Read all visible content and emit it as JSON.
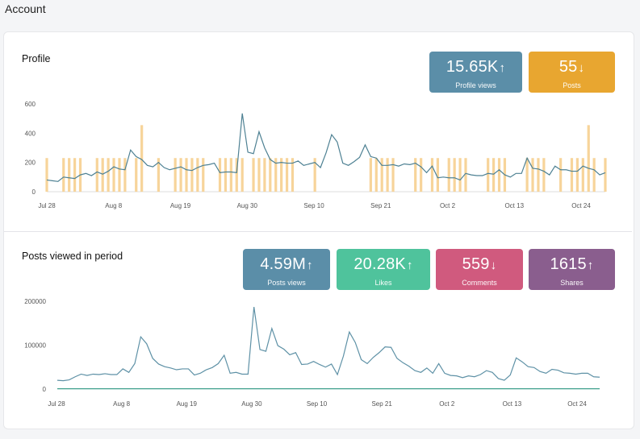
{
  "page": {
    "title": "Account"
  },
  "profile": {
    "title": "Profile",
    "stats": [
      {
        "value": "15.65K",
        "direction": "up",
        "label": "Profile views",
        "color": "#5b8ea8"
      },
      {
        "value": "55",
        "direction": "down",
        "label": "Posts",
        "color": "#e8a630"
      }
    ]
  },
  "posts": {
    "title": "Posts viewed in period",
    "stats": [
      {
        "value": "4.59M",
        "direction": "up",
        "label": "Posts views",
        "color": "#5b8ea8"
      },
      {
        "value": "20.28K",
        "direction": "up",
        "label": "Likes",
        "color": "#4fc39c"
      },
      {
        "value": "559",
        "direction": "down",
        "label": "Comments",
        "color": "#d05a7e"
      },
      {
        "value": "1615",
        "direction": "up",
        "label": "Shares",
        "color": "#8a5e8e"
      }
    ]
  },
  "chart_data": [
    {
      "type": "bar+line",
      "title": "",
      "x_tick_labels": [
        "Jul 28",
        "Aug 8",
        "Aug 19",
        "Aug 30",
        "Sep 10",
        "Sep 21",
        "Oct 2",
        "Oct 13",
        "Oct 24"
      ],
      "y_tick_labels": [
        "0",
        "200",
        "400",
        "600"
      ],
      "ylim": [
        0,
        600
      ],
      "bar_color": "#f7d49a",
      "line_color": "#4e8193",
      "series": [
        {
          "values": [
            230,
            0,
            0,
            230,
            230,
            230,
            230,
            0,
            0,
            230,
            230,
            230,
            230,
            230,
            230,
            0,
            230,
            455,
            0,
            0,
            230,
            0,
            0,
            230,
            230,
            230,
            230,
            230,
            230,
            0,
            0,
            230,
            230,
            230,
            230,
            230,
            0,
            230,
            230,
            230,
            230,
            230,
            230,
            230,
            230,
            0,
            0,
            0,
            230,
            0,
            0,
            0,
            0,
            0,
            0,
            0,
            0,
            0,
            230,
            230,
            230,
            230,
            230,
            0,
            0,
            0,
            230,
            230,
            0,
            230,
            230,
            0,
            230,
            230,
            230,
            230,
            0,
            0,
            0,
            230,
            230,
            230,
            230,
            0,
            0,
            0,
            230,
            230,
            230,
            230,
            0,
            0,
            230,
            0,
            230,
            230,
            230,
            455,
            230,
            0,
            230
          ]
        },
        {
          "values": [
            80,
            75,
            70,
            100,
            95,
            90,
            115,
            125,
            110,
            135,
            120,
            140,
            170,
            155,
            150,
            285,
            240,
            220,
            180,
            170,
            200,
            165,
            150,
            160,
            170,
            150,
            145,
            165,
            180,
            185,
            195,
            130,
            135,
            135,
            130,
            535,
            270,
            260,
            410,
            300,
            220,
            195,
            200,
            195,
            195,
            210,
            180,
            190,
            200,
            165,
            265,
            390,
            340,
            195,
            180,
            205,
            235,
            320,
            240,
            230,
            180,
            180,
            185,
            175,
            190,
            185,
            195,
            170,
            130,
            175,
            95,
            100,
            95,
            95,
            80,
            125,
            115,
            110,
            110,
            125,
            120,
            150,
            115,
            100,
            125,
            125,
            230,
            160,
            155,
            140,
            115,
            175,
            150,
            150,
            140,
            140,
            175,
            160,
            150,
            115,
            130
          ]
        }
      ]
    },
    {
      "type": "line",
      "title": "",
      "x_tick_labels": [
        "Jul 28",
        "Aug 8",
        "Aug 19",
        "Aug 30",
        "Sep 10",
        "Sep 21",
        "Oct 2",
        "Oct 13",
        "Oct 24"
      ],
      "y_tick_labels": [
        "0",
        "100000",
        "200000"
      ],
      "ylim": [
        0,
        200000
      ],
      "line_color": "#5e91a6",
      "series": [
        {
          "values": [
            20000,
            19000,
            21000,
            28000,
            34000,
            31000,
            34000,
            33000,
            35000,
            33000,
            33000,
            46000,
            38000,
            58000,
            119000,
            103000,
            70000,
            57000,
            51000,
            48000,
            44000,
            46000,
            46000,
            32000,
            36000,
            44000,
            49000,
            58000,
            77000,
            36000,
            38000,
            34000,
            34000,
            187000,
            90000,
            86000,
            138000,
            99000,
            91000,
            78000,
            83000,
            56000,
            57000,
            63000,
            56000,
            50000,
            57000,
            33000,
            75000,
            130000,
            106000,
            67000,
            58000,
            72000,
            83000,
            96000,
            95000,
            70000,
            60000,
            52000,
            42000,
            38000,
            48000,
            36000,
            58000,
            36000,
            31000,
            30000,
            26000,
            30000,
            28000,
            33000,
            42000,
            38000,
            24000,
            20000,
            32000,
            71000,
            62000,
            51000,
            49000,
            40000,
            36000,
            45000,
            43000,
            37000,
            36000,
            34000,
            36000,
            36000,
            28000,
            27000
          ]
        },
        {
          "values": [
            700,
            700,
            700,
            700,
            700,
            700,
            700,
            700,
            700,
            700,
            700,
            700,
            700,
            700,
            700,
            700,
            700,
            700,
            700,
            700,
            700,
            700,
            700,
            700,
            700,
            700,
            700,
            700,
            700,
            700,
            700,
            700,
            700,
            700,
            700,
            700,
            700,
            700,
            700,
            700,
            700,
            700,
            700,
            700,
            700,
            700,
            700,
            700,
            700,
            700,
            700,
            700,
            700,
            700,
            700,
            700,
            700,
            700,
            700,
            700,
            700,
            700,
            700,
            700,
            700,
            700,
            700,
            700,
            700,
            700,
            700,
            700,
            700,
            700,
            700,
            700,
            700,
            700,
            700,
            700,
            700,
            700,
            700,
            700,
            700,
            700,
            700,
            700,
            700,
            700,
            700,
            700
          ]
        }
      ]
    }
  ]
}
